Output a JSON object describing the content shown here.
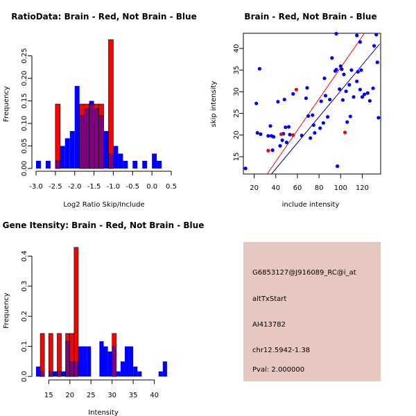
{
  "chart_data": [
    {
      "type": "bar",
      "subtype": "overlaid-histogram",
      "title": "RatioData: Brain - Red, Not Brain - Blue",
      "xlabel": "Log2 Ratio Skip/Include",
      "ylabel": "Frequency",
      "xlim": [
        -3.0,
        0.5
      ],
      "ylim": [
        0,
        0.3
      ],
      "xticks": [
        "-3.0",
        "-2.5",
        "-2.0",
        "-1.5",
        "-1.0",
        "-0.5",
        "0.0",
        "0.5"
      ],
      "yticks": [
        "0.00",
        "0.05",
        "0.10",
        "0.15",
        "0.20",
        "0.25"
      ],
      "bin_width": 0.125,
      "series": [
        {
          "name": "Not Brain",
          "color": "#0000ff",
          "bins": [
            [
              -3.0,
              0.017
            ],
            [
              -2.75,
              0.017
            ],
            [
              -2.5,
              0.017
            ],
            [
              -2.375,
              0.05
            ],
            [
              -2.25,
              0.067
            ],
            [
              -2.125,
              0.083
            ],
            [
              -2.0,
              0.183
            ],
            [
              -1.875,
              0.117
            ],
            [
              -1.75,
              0.133
            ],
            [
              -1.625,
              0.15
            ],
            [
              -1.5,
              0.133
            ],
            [
              -1.375,
              0.117
            ],
            [
              -1.25,
              0.083
            ],
            [
              -1.125,
              0.033
            ],
            [
              -1.0,
              0.05
            ],
            [
              -0.875,
              0.033
            ],
            [
              -0.75,
              0.017
            ],
            [
              -0.5,
              0.017
            ],
            [
              -0.25,
              0.017
            ],
            [
              0.0,
              0.033
            ],
            [
              0.125,
              0.017
            ]
          ]
        },
        {
          "name": "Brain",
          "color": "#ff0000",
          "bins": [
            [
              -2.5,
              0.143
            ],
            [
              -1.875,
              0.143
            ],
            [
              -1.75,
              0.143
            ],
            [
              -1.625,
              0.143
            ],
            [
              -1.5,
              0.143
            ],
            [
              -1.375,
              0.143
            ],
            [
              -1.125,
              0.286
            ]
          ]
        }
      ]
    },
    {
      "type": "scatter",
      "title": "Brain - Red, Not Brain - Blue",
      "xlabel": "include intensity",
      "ylabel": "skip intensity",
      "xlim": [
        10,
        137
      ],
      "ylim": [
        11,
        43.5
      ],
      "xticks": [
        "20",
        "40",
        "60",
        "80",
        "100",
        "120"
      ],
      "yticks": [
        "15",
        "20",
        "25",
        "30",
        "35",
        "40"
      ],
      "series": [
        {
          "name": "Not Brain",
          "color": "#0000ff",
          "points": [
            [
              12,
              12.3
            ],
            [
              22,
              27.3
            ],
            [
              23,
              20.5
            ],
            [
              25,
              35.3
            ],
            [
              26,
              20.2
            ],
            [
              33,
              19.8
            ],
            [
              35,
              22.1
            ],
            [
              36,
              19.8
            ],
            [
              37,
              16.5
            ],
            [
              38,
              19.6
            ],
            [
              42,
              27.7
            ],
            [
              44,
              17.5
            ],
            [
              46,
              18.8
            ],
            [
              47,
              20.3
            ],
            [
              48,
              28.2
            ],
            [
              49,
              21.8
            ],
            [
              50,
              18.3
            ],
            [
              52,
              21.9
            ],
            [
              53,
              20.1
            ],
            [
              56,
              29.5
            ],
            [
              64,
              19.9
            ],
            [
              68,
              28.5
            ],
            [
              69,
              30.9
            ],
            [
              70,
              24.4
            ],
            [
              72,
              19.3
            ],
            [
              75,
              22.3
            ],
            [
              76,
              20.5
            ],
            [
              81,
              21.6
            ],
            [
              82,
              27.8
            ],
            [
              84,
              22.8
            ],
            [
              85,
              33.1
            ],
            [
              86,
              29.1
            ],
            [
              88,
              24.2
            ],
            [
              90,
              28.2
            ],
            [
              92,
              37.8
            ],
            [
              95,
              34.8
            ],
            [
              96,
              35.1
            ],
            [
              97,
              12.8
            ],
            [
              99,
              30.6
            ],
            [
              100,
              35.9
            ],
            [
              101,
              35.2
            ],
            [
              102,
              28.1
            ],
            [
              103,
              34.0
            ],
            [
              105,
              30.1
            ],
            [
              106,
              23.0
            ],
            [
              108,
              31.6
            ],
            [
              109,
              24.3
            ],
            [
              110,
              35.0
            ],
            [
              112,
              28.8
            ],
            [
              115,
              32.4
            ],
            [
              116,
              34.6
            ],
            [
              118,
              30.5
            ],
            [
              119,
              35.0
            ],
            [
              122,
              29.4
            ],
            [
              125,
              29.7
            ],
            [
              127,
              27.9
            ],
            [
              130,
              30.8
            ],
            [
              131,
              40.6
            ],
            [
              133,
              43.2
            ],
            [
              134,
              36.8
            ],
            [
              135,
              24.0
            ],
            [
              115,
              43.0
            ],
            [
              118,
              41.5
            ],
            [
              120,
              28.8
            ],
            [
              96,
              43.4
            ],
            [
              74,
              24.6
            ]
          ]
        },
        {
          "name": "Brain",
          "color": "#ff0000",
          "points": [
            [
              33,
              16.4
            ],
            [
              45,
              20.2
            ],
            [
              56,
              20.0
            ],
            [
              59,
              30.5
            ],
            [
              104,
              20.6
            ]
          ]
        }
      ],
      "fit_lines": [
        {
          "name": "Brain fit",
          "color": "#ff0000",
          "from": [
            32,
            11
          ],
          "to": [
            122,
            43.5
          ]
        },
        {
          "name": "Not Brain fit",
          "color": "#00008b",
          "from": [
            36,
            11
          ],
          "to": [
            136,
            41
          ]
        }
      ]
    },
    {
      "type": "bar",
      "subtype": "overlaid-histogram",
      "title": "Gene Itensity: Brain - Red, Not Brain - Blue",
      "xlabel": "Intensity",
      "ylabel": "Frequency",
      "xlim": [
        12,
        44
      ],
      "ylim": [
        0,
        0.44
      ],
      "xticks": [
        "15",
        "20",
        "25",
        "30",
        "35",
        "40"
      ],
      "yticks": [
        "0.0",
        "0.1",
        "0.2",
        "0.3",
        "0.4"
      ],
      "bin_width": 1,
      "series": [
        {
          "name": "Not Brain",
          "color": "#0000ff",
          "bins": [
            [
              12,
              0.033
            ],
            [
              13,
              0.017
            ],
            [
              15,
              0.017
            ],
            [
              16,
              0.017
            ],
            [
              17,
              0.017
            ],
            [
              18,
              0.017
            ],
            [
              19,
              0.117
            ],
            [
              20,
              0.05
            ],
            [
              21,
              0.05
            ],
            [
              22,
              0.1
            ],
            [
              23,
              0.1
            ],
            [
              24,
              0.1
            ],
            [
              27,
              0.117
            ],
            [
              28,
              0.1
            ],
            [
              29,
              0.083
            ],
            [
              30,
              0.1
            ],
            [
              31,
              0.017
            ],
            [
              32,
              0.05
            ],
            [
              33,
              0.1
            ],
            [
              34,
              0.1
            ],
            [
              35,
              0.033
            ],
            [
              36,
              0.017
            ],
            [
              41,
              0.017
            ],
            [
              42,
              0.05
            ]
          ]
        },
        {
          "name": "Brain",
          "color": "#ff0000",
          "bins": [
            [
              13,
              0.143
            ],
            [
              15,
              0.143
            ],
            [
              17,
              0.143
            ],
            [
              19,
              0.143
            ],
            [
              20,
              0.143
            ],
            [
              21,
              0.429
            ],
            [
              30,
              0.143
            ]
          ]
        }
      ]
    }
  ],
  "info_panel": {
    "lines": [
      "G6853127@J916089_RC@i_at",
      "altTxStart",
      "AI413782",
      "chr12.5942-1.38"
    ],
    "pval": "Pval: 2.000000",
    "background": "#e6c8c0",
    "pval_color": "#cc0000"
  }
}
